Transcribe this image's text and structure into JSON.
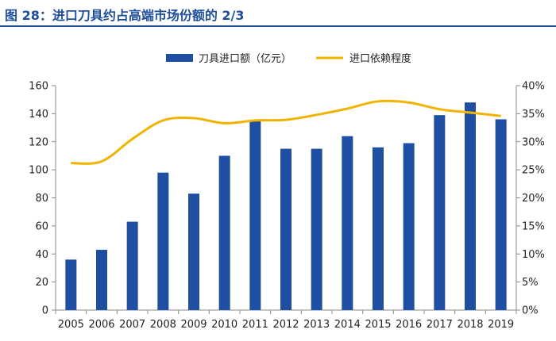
{
  "title": "图 28：进口刀具约占高端市场份额的 2/3",
  "colors": {
    "title": "#1f4e9a",
    "bar": "#1f4fa3",
    "line": "#f0b400"
  },
  "chart_data": {
    "type": "bar",
    "categories": [
      "2005",
      "2006",
      "2007",
      "2008",
      "2009",
      "2010",
      "2011",
      "2012",
      "2013",
      "2014",
      "2015",
      "2016",
      "2017",
      "2018",
      "2019"
    ],
    "series": [
      {
        "name": "刀具进口额（亿元）",
        "type": "bar",
        "axis": "left",
        "values": [
          36,
          43,
          63,
          98,
          83,
          110,
          135,
          115,
          115,
          124,
          116,
          119,
          139,
          148,
          136
        ]
      },
      {
        "name": "进口依赖程度",
        "type": "line",
        "axis": "right",
        "values": [
          26.2,
          26.5,
          30.5,
          33.8,
          34.2,
          33.3,
          33.8,
          33.9,
          34.8,
          35.9,
          37.2,
          37.0,
          35.8,
          35.2,
          34.6
        ]
      }
    ],
    "y_left": {
      "min": 0,
      "max": 160,
      "step": 20
    },
    "y_right": {
      "min": 0,
      "max": 40,
      "step": 5,
      "suffix": "%"
    },
    "legend_position": "top-center",
    "grid": false
  }
}
